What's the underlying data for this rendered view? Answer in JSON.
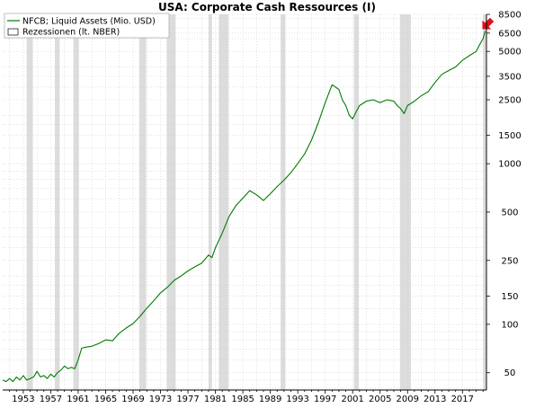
{
  "chart_data": {
    "type": "line",
    "title": "USA: Corporate Cash Ressources (I)",
    "xlabel": "",
    "ylabel": "",
    "y_scale": "log",
    "xlim": [
      1950,
      2020.5
    ],
    "ylim": [
      39,
      8500
    ],
    "x_ticks": [
      1953,
      1957,
      1961,
      1965,
      1969,
      1973,
      1977,
      1981,
      1985,
      1989,
      1993,
      1997,
      2001,
      2005,
      2009,
      2013,
      2017
    ],
    "y_ticks": [
      50,
      100,
      150,
      250,
      500,
      1000,
      1500,
      2500,
      3500,
      5000,
      6500,
      8500
    ],
    "grid": true,
    "legend_position": "top-left",
    "legend": {
      "line_label": "NFCB; Liquid Assets (Mio. USD)",
      "rect_label": "Rezessionen (lt. NBER)"
    },
    "colors": {
      "line": "#007a00",
      "recession": "#dcdcdc",
      "grid": "#cfcfcf",
      "arrow": "#e0101a"
    },
    "recessions": [
      [
        1953.5,
        1954.4
      ],
      [
        1957.6,
        1958.3
      ],
      [
        1960.3,
        1961.1
      ],
      [
        1969.9,
        1970.9
      ],
      [
        1973.9,
        1975.2
      ],
      [
        1980.0,
        1980.5
      ],
      [
        1981.5,
        1982.9
      ],
      [
        1990.5,
        1991.2
      ],
      [
        2001.2,
        2001.9
      ],
      [
        2007.9,
        2009.5
      ],
      [
        2020.0,
        2020.4
      ]
    ],
    "series": [
      {
        "name": "NFCB; Liquid Assets (Mio. USD)",
        "x": [
          1950.0,
          1950.5,
          1951.0,
          1951.5,
          1952.0,
          1952.5,
          1953.0,
          1953.5,
          1954.0,
          1954.5,
          1955.0,
          1955.5,
          1956.0,
          1956.5,
          1957.0,
          1957.5,
          1958.0,
          1958.5,
          1959.0,
          1959.5,
          1960.0,
          1960.5,
          1961.0,
          1961.5,
          1962.0,
          1963.0,
          1964.0,
          1965.0,
          1966.0,
          1967.0,
          1968.0,
          1969.0,
          1970.0,
          1971.0,
          1972.0,
          1973.0,
          1974.0,
          1975.0,
          1976.0,
          1977.0,
          1978.0,
          1979.0,
          1980.0,
          1980.5,
          1981.0,
          1982.0,
          1983.0,
          1984.0,
          1985.0,
          1986.0,
          1987.0,
          1988.0,
          1989.0,
          1990.0,
          1991.0,
          1992.0,
          1993.0,
          1994.0,
          1995.0,
          1996.0,
          1997.0,
          1998.0,
          1999.0,
          1999.5,
          2000.0,
          2000.5,
          2001.0,
          2001.5,
          2002.0,
          2003.0,
          2004.0,
          2005.0,
          2006.0,
          2007.0,
          2007.5,
          2008.0,
          2008.5,
          2009.0,
          2010.0,
          2011.0,
          2012.0,
          2013.0,
          2014.0,
          2015.0,
          2016.0,
          2017.0,
          2018.0,
          2019.0,
          2019.5,
          2020.0,
          2020.3
        ],
        "values": [
          45,
          44,
          46,
          44,
          47,
          45,
          48,
          45,
          46,
          47,
          51,
          47,
          48,
          46,
          49,
          47,
          50,
          52,
          55,
          53,
          54,
          53,
          60,
          71,
          72,
          73,
          76,
          80,
          79,
          88,
          95,
          101,
          112,
          126,
          140,
          157,
          170,
          188,
          200,
          215,
          228,
          240,
          270,
          260,
          300,
          370,
          470,
          550,
          610,
          680,
          640,
          590,
          650,
          720,
          790,
          880,
          1000,
          1150,
          1400,
          1800,
          2400,
          3100,
          2900,
          2500,
          2300,
          2000,
          1900,
          2100,
          2300,
          2450,
          2500,
          2400,
          2500,
          2450,
          2300,
          2200,
          2050,
          2300,
          2450,
          2650,
          2800,
          3200,
          3600,
          3800,
          4000,
          4400,
          4700,
          5000,
          5500,
          6000,
          6700
        ]
      }
    ]
  }
}
